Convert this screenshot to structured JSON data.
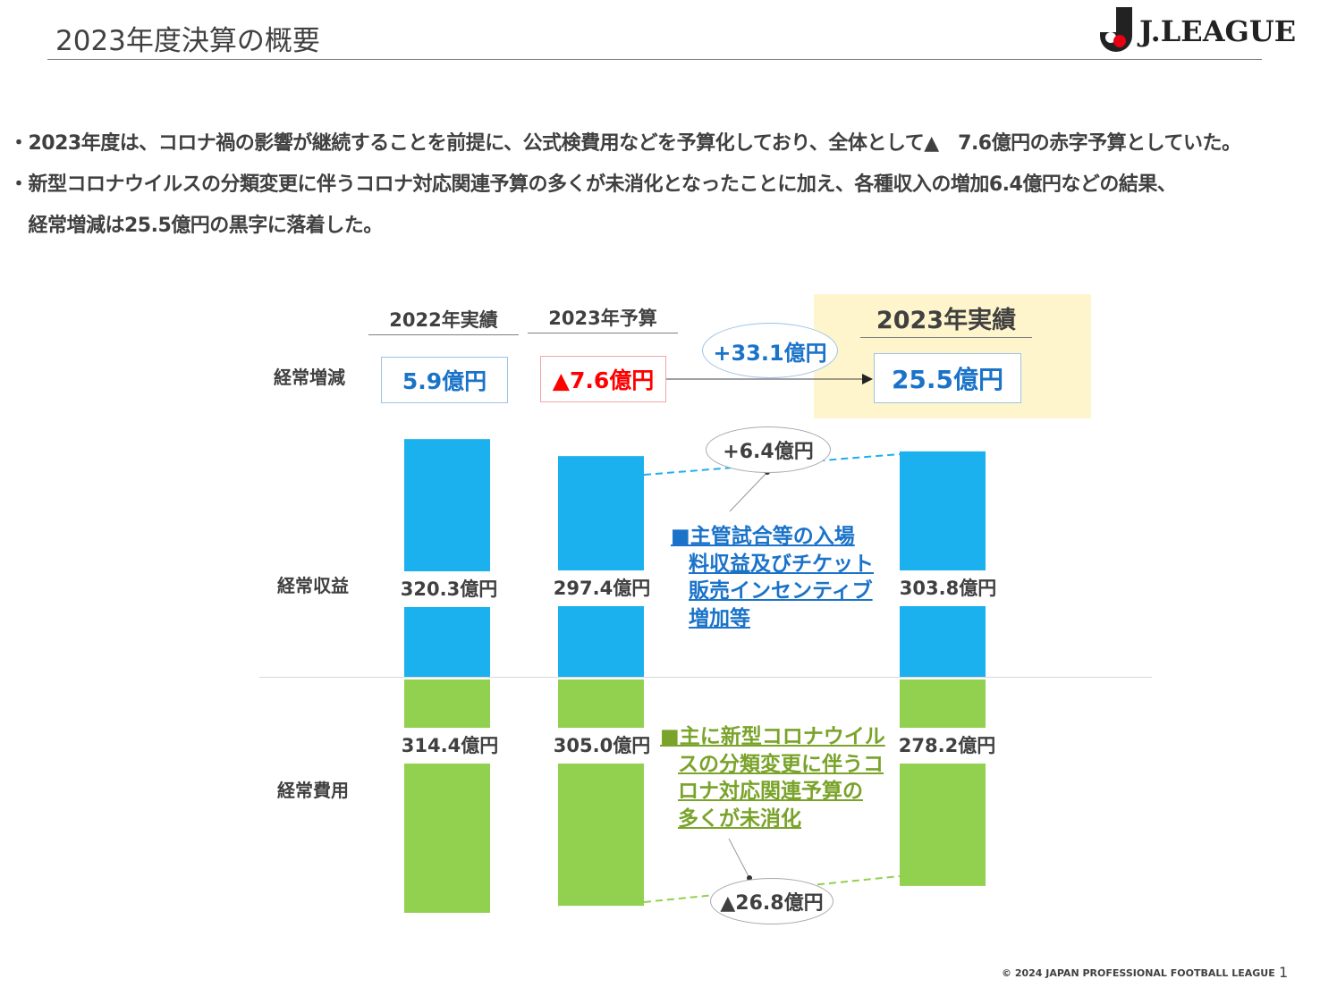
{
  "header": {
    "title": "2023年度決算の概要",
    "logo_text": "J.LEAGUE"
  },
  "bullets": [
    "・2023年度は、コロナ禍の影響が継続することを前提に、公式検費用などを予算化しており、全体として▲　7.6億円の赤字予算としていた。",
    "・新型コロナウイルスの分類変更に伴うコロナ対応関連予算の多くが未消化となったことに加え、各種収入の増加6.4億円などの結果、",
    "　経常増減は25.5億円の黒字に落着した。"
  ],
  "colors": {
    "revenue": "#1bb0ee",
    "expense": "#92d050",
    "highlight": "#fff5cc",
    "value_blue": "#1a73c9",
    "negative": "#ff0000",
    "note_green": "#7aa32a"
  },
  "chart_data": {
    "type": "bar",
    "categories": [
      "2022年実績",
      "2023年予算",
      "2023年実績"
    ],
    "row_labels": {
      "net": "経常増減",
      "revenue": "経常収益",
      "expense": "経常費用"
    },
    "net": [
      "5.9億円",
      "▲7.6億円",
      "25.5億円"
    ],
    "net_values": [
      5.9,
      -7.6,
      25.5
    ],
    "series": [
      {
        "name": "経常収益",
        "values": [
          320.3,
          297.4,
          303.8
        ],
        "labels": [
          "320.3億円",
          "297.4億円",
          "303.8億円"
        ]
      },
      {
        "name": "経常費用",
        "values": [
          314.4,
          305.0,
          278.2
        ],
        "labels": [
          "314.4億円",
          "305.0億円",
          "278.2億円"
        ]
      }
    ],
    "annotations": {
      "net_change": "+33.1億円",
      "revenue_change": "+6.4億円",
      "expense_change": "▲26.8億円",
      "revenue_note": [
        "■主管試合等の入場",
        "料収益及びチケット",
        "販売インセンティブ",
        "増加等"
      ],
      "expense_note": [
        "■主に新型コロナウイル",
        "スの分類変更に伴うコ",
        "ロナ対応関連予算の",
        "多くが未消化"
      ]
    }
  },
  "footer": {
    "copyright": "© 2024 JAPAN PROFESSIONAL FOOTBALL LEAGUE",
    "page": "1"
  }
}
